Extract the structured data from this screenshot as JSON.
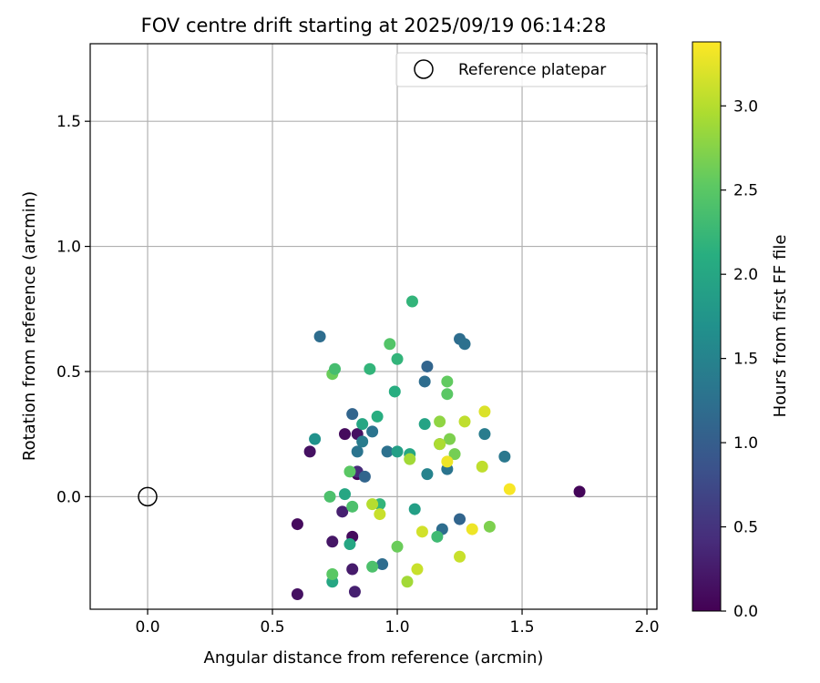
{
  "chart_data": {
    "type": "scatter",
    "title": "FOV centre drift starting at 2025/09/19 06:14:28",
    "xlabel": "Angular distance from reference (arcmin)",
    "ylabel": "Rotation from reference (arcmin)",
    "xlim": [
      -0.23,
      2.04
    ],
    "ylim": [
      -0.45,
      1.81
    ],
    "xticks": [
      0.0,
      0.5,
      1.0,
      1.5,
      2.0
    ],
    "xtick_labels": [
      "0.0",
      "0.5",
      "1.0",
      "1.5",
      "2.0"
    ],
    "yticks": [
      0.0,
      0.5,
      1.0,
      1.5
    ],
    "ytick_labels": [
      "0.0",
      "0.5",
      "1.0",
      "1.5"
    ],
    "grid": true,
    "legend": {
      "position": "top-right",
      "entries": [
        "Reference platepar"
      ]
    },
    "reference_point": {
      "x": 0.0,
      "y": 0.0,
      "label": "Reference platepar"
    },
    "colorbar": {
      "label": "Hours from first FF file",
      "range": [
        0.0,
        3.38
      ],
      "ticks": [
        0.0,
        0.5,
        1.0,
        1.5,
        2.0,
        2.5,
        3.0
      ],
      "tick_labels": [
        "0.0",
        "0.5",
        "1.0",
        "1.5",
        "2.0",
        "2.5",
        "3.0"
      ],
      "colormap": "viridis"
    },
    "points": [
      {
        "x": 1.73,
        "y": 0.02,
        "hours": 0.05
      },
      {
        "x": 0.6,
        "y": -0.39,
        "hours": 0.15
      },
      {
        "x": 0.6,
        "y": -0.11,
        "hours": 0.1
      },
      {
        "x": 0.65,
        "y": 0.18,
        "hours": 0.15
      },
      {
        "x": 0.74,
        "y": -0.18,
        "hours": 0.2
      },
      {
        "x": 0.79,
        "y": 0.25,
        "hours": 0.1
      },
      {
        "x": 0.78,
        "y": -0.06,
        "hours": 0.3
      },
      {
        "x": 0.82,
        "y": -0.16,
        "hours": 0.1
      },
      {
        "x": 0.82,
        "y": -0.29,
        "hours": 0.25
      },
      {
        "x": 0.83,
        "y": -0.38,
        "hours": 0.3
      },
      {
        "x": 0.84,
        "y": 0.25,
        "hours": 0.15
      },
      {
        "x": 0.84,
        "y": 0.09,
        "hours": 0.05
      },
      {
        "x": 0.84,
        "y": 0.1,
        "hours": 0.4
      },
      {
        "x": 0.69,
        "y": 0.64,
        "hours": 1.2
      },
      {
        "x": 0.82,
        "y": 0.33,
        "hours": 1.1
      },
      {
        "x": 0.84,
        "y": 0.18,
        "hours": 1.3
      },
      {
        "x": 0.86,
        "y": 0.22,
        "hours": 1.4
      },
      {
        "x": 0.87,
        "y": 0.08,
        "hours": 1.1
      },
      {
        "x": 0.9,
        "y": 0.26,
        "hours": 1.3
      },
      {
        "x": 0.94,
        "y": -0.27,
        "hours": 1.2
      },
      {
        "x": 0.96,
        "y": 0.18,
        "hours": 1.25
      },
      {
        "x": 1.12,
        "y": 0.52,
        "hours": 1.1
      },
      {
        "x": 1.11,
        "y": 0.46,
        "hours": 1.2
      },
      {
        "x": 1.12,
        "y": 0.09,
        "hours": 1.5
      },
      {
        "x": 1.17,
        "y": 0.21,
        "hours": 1.3
      },
      {
        "x": 1.18,
        "y": -0.13,
        "hours": 1.2
      },
      {
        "x": 1.2,
        "y": 0.11,
        "hours": 1.3
      },
      {
        "x": 1.25,
        "y": 0.63,
        "hours": 1.2
      },
      {
        "x": 1.27,
        "y": 0.61,
        "hours": 1.25
      },
      {
        "x": 1.25,
        "y": -0.09,
        "hours": 1.1
      },
      {
        "x": 1.35,
        "y": 0.25,
        "hours": 1.4
      },
      {
        "x": 1.43,
        "y": 0.16,
        "hours": 1.35
      },
      {
        "x": 0.67,
        "y": 0.23,
        "hours": 1.7
      },
      {
        "x": 0.74,
        "y": -0.34,
        "hours": 2.0
      },
      {
        "x": 0.79,
        "y": 0.01,
        "hours": 2.0
      },
      {
        "x": 0.81,
        "y": -0.19,
        "hours": 2.0
      },
      {
        "x": 0.86,
        "y": 0.29,
        "hours": 2.0
      },
      {
        "x": 0.89,
        "y": 0.51,
        "hours": 2.2
      },
      {
        "x": 0.92,
        "y": 0.32,
        "hours": 2.1
      },
      {
        "x": 0.93,
        "y": -0.03,
        "hours": 2.2
      },
      {
        "x": 0.99,
        "y": 0.42,
        "hours": 2.1
      },
      {
        "x": 1.0,
        "y": 0.55,
        "hours": 2.2
      },
      {
        "x": 1.0,
        "y": 0.18,
        "hours": 1.9
      },
      {
        "x": 1.05,
        "y": 0.17,
        "hours": 2.0
      },
      {
        "x": 1.06,
        "y": 0.78,
        "hours": 2.2
      },
      {
        "x": 1.07,
        "y": -0.05,
        "hours": 1.9
      },
      {
        "x": 1.11,
        "y": 0.29,
        "hours": 1.95
      },
      {
        "x": 1.16,
        "y": -0.16,
        "hours": 2.3
      },
      {
        "x": 0.73,
        "y": 0.0,
        "hours": 2.4
      },
      {
        "x": 0.74,
        "y": 0.49,
        "hours": 2.6
      },
      {
        "x": 0.75,
        "y": 0.51,
        "hours": 2.35
      },
      {
        "x": 0.74,
        "y": -0.31,
        "hours": 2.5
      },
      {
        "x": 0.81,
        "y": 0.1,
        "hours": 2.5
      },
      {
        "x": 0.82,
        "y": -0.04,
        "hours": 2.4
      },
      {
        "x": 0.9,
        "y": -0.28,
        "hours": 2.4
      },
      {
        "x": 0.97,
        "y": 0.61,
        "hours": 2.45
      },
      {
        "x": 1.0,
        "y": -0.2,
        "hours": 2.6
      },
      {
        "x": 1.2,
        "y": 0.46,
        "hours": 2.55
      },
      {
        "x": 1.2,
        "y": 0.41,
        "hours": 2.5
      },
      {
        "x": 1.21,
        "y": 0.23,
        "hours": 2.7
      },
      {
        "x": 1.23,
        "y": 0.17,
        "hours": 2.65
      },
      {
        "x": 1.37,
        "y": -0.12,
        "hours": 2.7
      },
      {
        "x": 0.9,
        "y": -0.03,
        "hours": 3.0
      },
      {
        "x": 0.93,
        "y": -0.07,
        "hours": 3.1
      },
      {
        "x": 1.05,
        "y": 0.15,
        "hours": 2.9
      },
      {
        "x": 1.04,
        "y": -0.34,
        "hours": 2.9
      },
      {
        "x": 1.08,
        "y": -0.29,
        "hours": 3.1
      },
      {
        "x": 1.1,
        "y": -0.14,
        "hours": 3.15
      },
      {
        "x": 1.17,
        "y": 0.3,
        "hours": 2.8
      },
      {
        "x": 1.17,
        "y": 0.21,
        "hours": 2.95
      },
      {
        "x": 1.2,
        "y": 0.14,
        "hours": 3.3
      },
      {
        "x": 1.25,
        "y": -0.24,
        "hours": 3.1
      },
      {
        "x": 1.27,
        "y": 0.3,
        "hours": 3.05
      },
      {
        "x": 1.3,
        "y": -0.13,
        "hours": 3.3
      },
      {
        "x": 1.34,
        "y": 0.12,
        "hours": 3.05
      },
      {
        "x": 1.35,
        "y": 0.34,
        "hours": 3.2
      },
      {
        "x": 1.45,
        "y": 0.03,
        "hours": 3.35
      }
    ]
  }
}
